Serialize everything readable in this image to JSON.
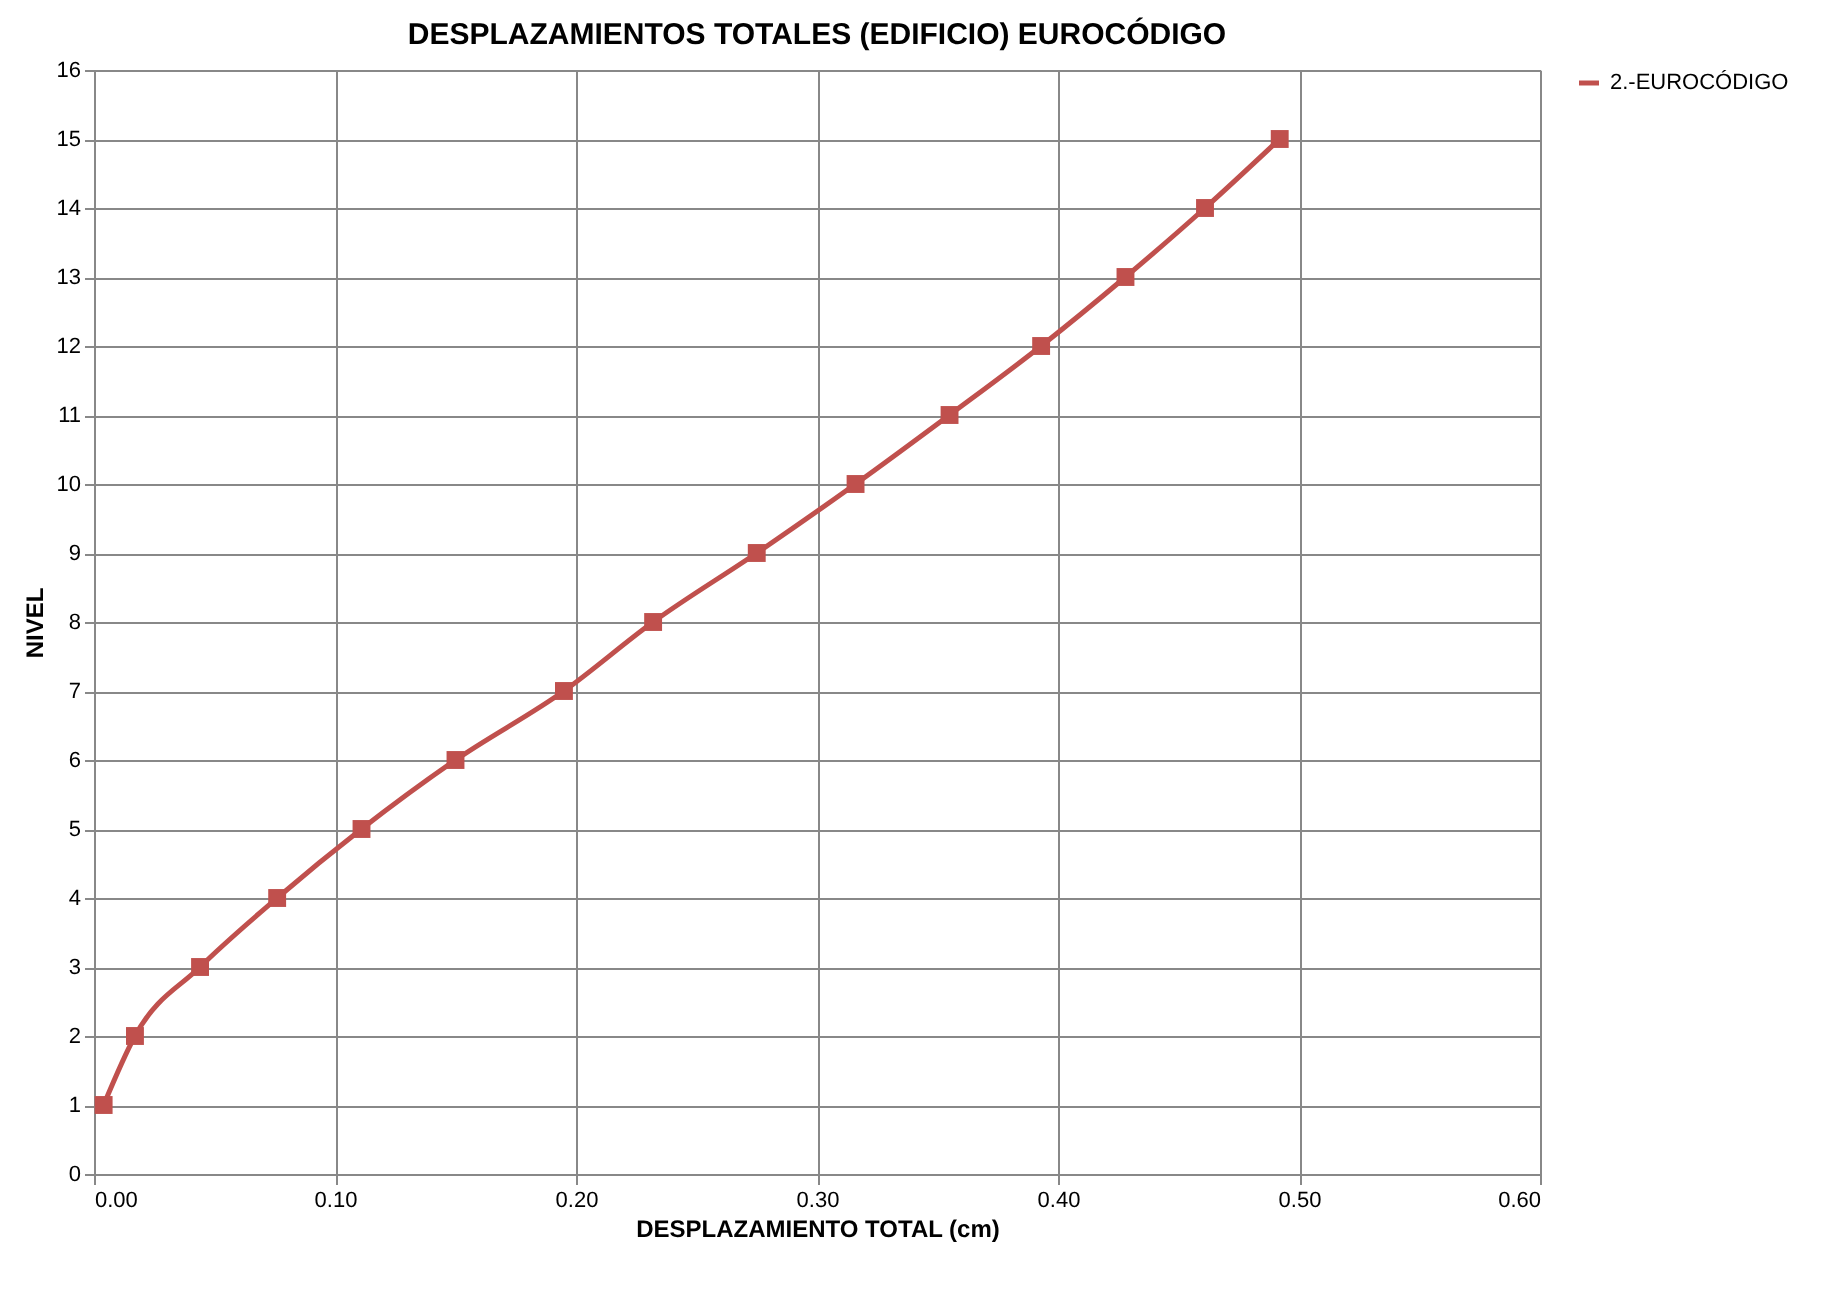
{
  "chart_data": {
    "type": "line",
    "title": "DESPLAZAMIENTOS TOTALES (EDIFICIO) EUROCÓDIGO",
    "xlabel": "DESPLAZAMIENTO TOTAL  (cm)",
    "ylabel": "NIVEL",
    "series": [
      {
        "name": "2.-EUROCÓDIGO",
        "color": "#c0504d",
        "x": [
          0.004,
          0.017,
          0.044,
          0.076,
          0.111,
          0.15,
          0.195,
          0.232,
          0.275,
          0.316,
          0.355,
          0.393,
          0.428,
          0.461,
          0.492
        ],
        "values": [
          1,
          2,
          3,
          4,
          5,
          6,
          7,
          8,
          9,
          10,
          11,
          12,
          13,
          14,
          15
        ]
      }
    ],
    "xlim": [
      0,
      0.6
    ],
    "xticks": [
      {
        "value": 0,
        "label": "0.00"
      },
      {
        "value": 0.1,
        "label": "0.10"
      },
      {
        "value": 0.2,
        "label": "0.20"
      },
      {
        "value": 0.3,
        "label": "0.30"
      },
      {
        "value": 0.4,
        "label": "0.40"
      },
      {
        "value": 0.5,
        "label": "0.50"
      },
      {
        "value": 0.6,
        "label": "0.60"
      }
    ],
    "ylim": [
      0,
      16
    ],
    "yticks": [
      0,
      1,
      2,
      3,
      4,
      5,
      6,
      7,
      8,
      9,
      10,
      11,
      12,
      13,
      14,
      15,
      16
    ],
    "grid": true,
    "legend": "right",
    "marker": "square",
    "line_style": "solid"
  }
}
